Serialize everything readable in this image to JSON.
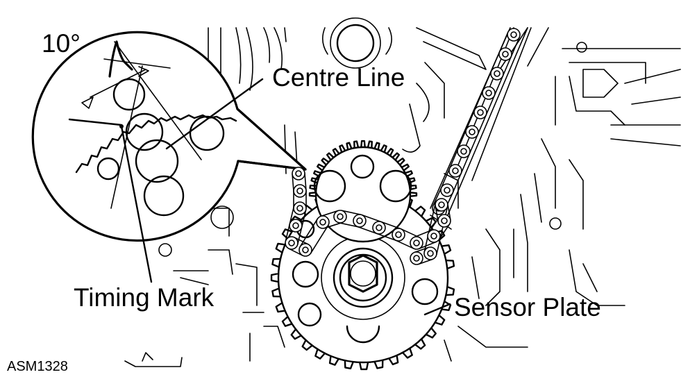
{
  "labels": {
    "angle": "10°",
    "centre_line": "Centre Line",
    "timing_mark": "Timing Mark",
    "sensor_plate": "Sensor Plate",
    "figure_code": "ASM1328"
  },
  "colors": {
    "ink": "#000000",
    "background": "#ffffff"
  }
}
